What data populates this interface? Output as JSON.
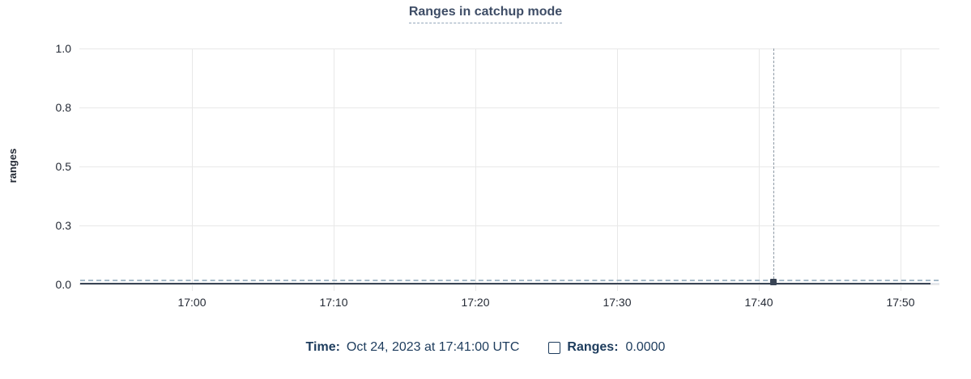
{
  "title": {
    "text": "Ranges in catchup mode"
  },
  "y_axis_label": "ranges",
  "legend": {
    "time_label": "Time:",
    "time_value": "Oct 24, 2023 at 17:41:00 UTC",
    "series_label": "Ranges:",
    "series_value": "0.0000",
    "checkbox_checked": false
  },
  "colors": {
    "title": "#3e4d66",
    "title_underline": "#93a7ba",
    "legend_text": "#1d3c5d",
    "tick_label": "#242a35",
    "gridline": "#e8e8e8",
    "series_line": "#394455",
    "dashed_guide": "#a6bac9",
    "crosshair": "#8b97a3",
    "baseline_stub": "#e3e7ec"
  },
  "chart_data": {
    "type": "line",
    "title": "Ranges in catchup mode",
    "xlabel": "",
    "ylabel": "ranges",
    "ylim": [
      0,
      1
    ],
    "grid": true,
    "legend_position": "bottom",
    "x_ticks": [
      {
        "label": "17:00",
        "min": 0
      },
      {
        "label": "17:10",
        "min": 10
      },
      {
        "label": "17:20",
        "min": 20
      },
      {
        "label": "17:30",
        "min": 30
      },
      {
        "label": "17:40",
        "min": 40
      },
      {
        "label": "17:50",
        "min": 50
      }
    ],
    "x_domain_min": [
      -7.9,
      52.7
    ],
    "y_ticks": [
      {
        "label": "0.0",
        "value": 0
      },
      {
        "label": "0.3",
        "value": 0.25
      },
      {
        "label": "0.5",
        "value": 0.5
      },
      {
        "label": "0.8",
        "value": 0.75
      },
      {
        "label": "1.0",
        "value": 1
      }
    ],
    "series": [
      {
        "name": "Ranges",
        "style": "dashed",
        "value_constant": 0,
        "start_min": -7.9,
        "end_min": 52.7,
        "points": [
          {
            "time": "16:52",
            "value": 0
          },
          {
            "time": "17:41:00",
            "value": 0
          },
          {
            "time": "17:52",
            "value": 0
          }
        ]
      }
    ],
    "baseline": {
      "style": "solid",
      "value": 0,
      "start_min": -7.9,
      "end_min": 52.1
    },
    "hover": {
      "time": "Oct 24, 2023 at 17:41:00 UTC",
      "crosshair_min": 41,
      "value": "0.0000"
    }
  }
}
